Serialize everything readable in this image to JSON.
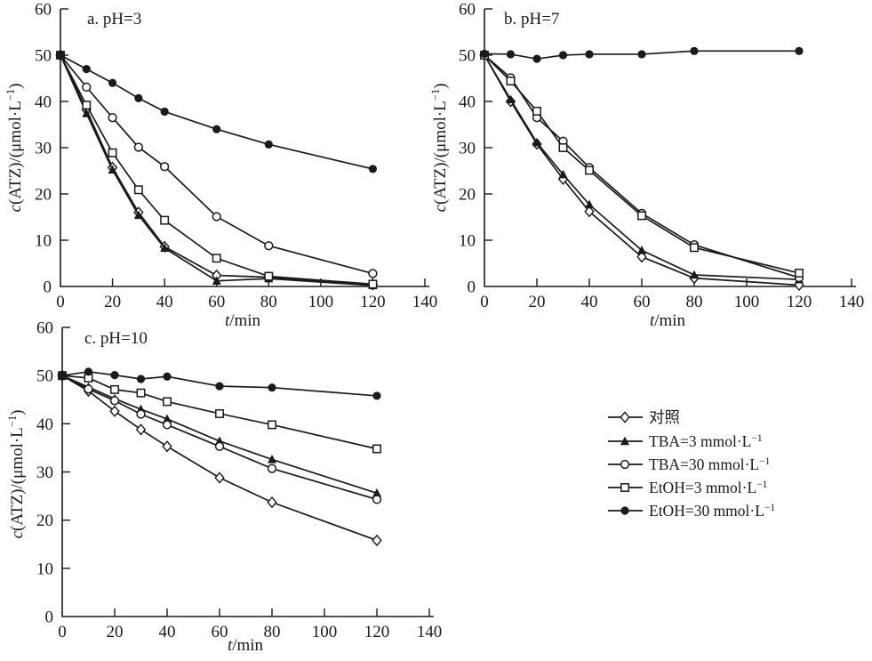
{
  "page": {
    "background": "#ffffff",
    "ink_color": "#1a1a1a"
  },
  "figure": {
    "x_ticks": [
      0,
      20,
      40,
      60,
      80,
      100,
      120,
      140
    ],
    "y_ticks": [
      0,
      10,
      20,
      30,
      40,
      50,
      60
    ],
    "x_axis_label": {
      "italic": "t",
      "rest": "/min"
    },
    "y_axis_label": {
      "italic": "c",
      "rest": "(ATZ)/(μmol·L",
      "sup": "−1",
      "close": ")"
    }
  },
  "chart_data": [
    {
      "type": "line",
      "title": "a. pH=3",
      "xlabel": "t/min",
      "ylabel": "c(ATZ)/(μmol·L−1)",
      "xlim": [
        0,
        140
      ],
      "ylim": [
        0,
        60
      ],
      "grid": false,
      "x": [
        0,
        10,
        20,
        30,
        40,
        60,
        80,
        120
      ],
      "series": [
        {
          "name": "对照",
          "marker": "diamond-open",
          "values": [
            50,
            38.2,
            25.7,
            16.0,
            8.6,
            2.4,
            2.0,
            0.4
          ]
        },
        {
          "name": "TBA=3 mmol·L−1",
          "marker": "triangle-filled",
          "values": [
            50,
            37.4,
            25.2,
            15.4,
            8.3,
            1.2,
            1.7,
            0.2
          ]
        },
        {
          "name": "TBA=30 mmol·L−1",
          "marker": "circle-open",
          "values": [
            50,
            43.1,
            36.5,
            30.1,
            25.9,
            15.1,
            8.8,
            2.8
          ]
        },
        {
          "name": "EtOH=3 mmol·L−1",
          "marker": "square-open",
          "values": [
            50,
            39.2,
            28.9,
            20.9,
            14.3,
            6.1,
            2.2,
            0.5
          ]
        },
        {
          "name": "EtOH=30 mmol·L−1",
          "marker": "circle-filled",
          "values": [
            50,
            47.0,
            44.0,
            40.7,
            37.8,
            34.0,
            30.7,
            25.4
          ]
        }
      ]
    },
    {
      "type": "line",
      "title": "b. pH=7",
      "xlabel": "t/min",
      "ylabel": "c(ATZ)/(μmol·L−1)",
      "xlim": [
        0,
        140
      ],
      "ylim": [
        0,
        60
      ],
      "grid": false,
      "x": [
        0,
        10,
        20,
        30,
        40,
        60,
        80,
        120
      ],
      "series": [
        {
          "name": "对照",
          "marker": "diamond-open",
          "values": [
            50,
            40.0,
            30.8,
            23.2,
            16.2,
            6.4,
            1.8,
            0.3
          ]
        },
        {
          "name": "TBA=3 mmol·L−1",
          "marker": "triangle-filled",
          "values": [
            50,
            40.4,
            31.1,
            24.2,
            17.7,
            7.8,
            2.5,
            1.5
          ]
        },
        {
          "name": "TBA=30 mmol·L−1",
          "marker": "circle-open",
          "values": [
            50,
            45.1,
            36.5,
            31.4,
            25.7,
            15.8,
            9.0,
            1.9
          ]
        },
        {
          "name": "EtOH=3 mmol·L−1",
          "marker": "square-open",
          "values": [
            50,
            44.4,
            37.9,
            30.0,
            25.1,
            15.3,
            8.4,
            2.9
          ]
        },
        {
          "name": "EtOH=30 mmol·L−1",
          "marker": "circle-filled",
          "values": [
            50.3,
            50.2,
            49.2,
            50.0,
            50.2,
            50.2,
            50.9,
            50.9
          ]
        }
      ]
    },
    {
      "type": "line",
      "title": "c. pH=10",
      "xlabel": "t/min",
      "ylabel": "c(ATZ)/(μmol·L−1)",
      "xlim": [
        0,
        140
      ],
      "ylim": [
        0,
        60
      ],
      "grid": false,
      "x": [
        0,
        10,
        20,
        30,
        40,
        60,
        80,
        120
      ],
      "series": [
        {
          "name": "对照",
          "marker": "diamond-open",
          "values": [
            50,
            46.8,
            42.6,
            38.8,
            35.3,
            28.8,
            23.7,
            15.8
          ]
        },
        {
          "name": "TBA=3 mmol·L−1",
          "marker": "triangle-filled",
          "values": [
            50,
            47.6,
            45.2,
            43.0,
            41.0,
            36.4,
            32.6,
            25.6
          ]
        },
        {
          "name": "TBA=30 mmol·L−1",
          "marker": "circle-open",
          "values": [
            50,
            47.2,
            44.8,
            42.0,
            39.8,
            35.3,
            30.7,
            24.3
          ]
        },
        {
          "name": "EtOH=3 mmol·L−1",
          "marker": "square-open",
          "values": [
            50,
            49.5,
            47.1,
            46.4,
            44.6,
            42.1,
            39.8,
            34.8
          ]
        },
        {
          "name": "EtOH=30 mmol·L−1",
          "marker": "circle-filled",
          "values": [
            50,
            50.8,
            50.1,
            49.3,
            49.8,
            47.8,
            47.5,
            45.8
          ]
        }
      ]
    }
  ],
  "legend": {
    "position": "bottom-right",
    "items": [
      {
        "label": "对照",
        "sup": "",
        "marker": "diamond-open"
      },
      {
        "label": "TBA=3 mmol·L",
        "sup": "−1",
        "marker": "triangle-filled"
      },
      {
        "label": "TBA=30 mmol·L",
        "sup": "−1",
        "marker": "circle-open"
      },
      {
        "label": "EtOH=3 mmol·L",
        "sup": "−1",
        "marker": "square-open"
      },
      {
        "label": "EtOH=30 mmol·L",
        "sup": "−1",
        "marker": "circle-filled"
      }
    ]
  }
}
